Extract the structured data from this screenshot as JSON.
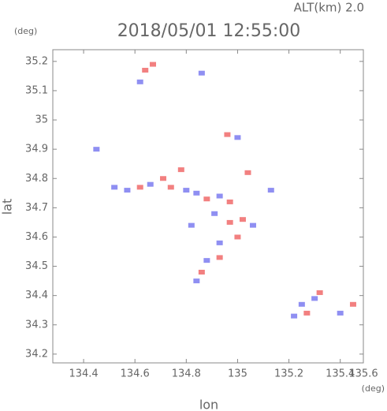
{
  "chart_data": {
    "type": "scatter",
    "title": "2018/05/01 12:55:00",
    "altitude_label": "ALT(km) 2.0",
    "y_unit": "(deg)",
    "x_unit": "(deg)",
    "x_label": "lon",
    "y_label": "lat",
    "xlim": [
      134.28,
      135.49
    ],
    "ylim": [
      34.17,
      35.24
    ],
    "xticks": [
      134.4,
      134.6,
      134.8,
      135.0,
      135.2,
      135.4,
      135.6
    ],
    "yticks": [
      34.2,
      34.3,
      34.4,
      34.5,
      34.6,
      34.7,
      34.8,
      34.9,
      35.0,
      35.1,
      35.2
    ],
    "x": [
      134.64,
      134.67,
      134.62,
      134.86,
      134.96,
      135.0,
      134.52,
      134.57,
      134.62,
      134.66,
      134.71,
      134.74,
      134.78,
      134.8,
      134.84,
      134.88,
      134.93,
      134.97,
      134.91,
      134.97,
      135.02,
      135.0,
      134.93,
      134.88,
      134.93,
      134.86,
      134.84,
      135.04,
      135.13,
      135.25,
      135.3,
      135.32,
      135.22,
      135.27,
      135.45,
      135.4,
      134.82,
      135.06,
      134.45
    ],
    "y": [
      35.17,
      35.19,
      35.13,
      35.16,
      34.95,
      34.94,
      34.77,
      34.76,
      34.77,
      34.78,
      34.8,
      34.77,
      34.83,
      34.76,
      34.75,
      34.73,
      34.74,
      34.72,
      34.68,
      34.65,
      34.66,
      34.6,
      34.58,
      34.52,
      34.53,
      34.48,
      34.45,
      34.82,
      34.76,
      34.37,
      34.39,
      34.41,
      34.33,
      34.34,
      34.37,
      34.34,
      34.64,
      34.64,
      34.9
    ],
    "colors": [
      "#f06a6a",
      "#f06a6a",
      "#7b7bf0",
      "#7b7bf0",
      "#f06a6a",
      "#7b7bf0",
      "#7b7bf0",
      "#7b7bf0",
      "#f06a6a",
      "#7b7bf0",
      "#f06a6a",
      "#f06a6a",
      "#f06a6a",
      "#7b7bf0",
      "#7b7bf0",
      "#f06a6a",
      "#7b7bf0",
      "#f06a6a",
      "#7b7bf0",
      "#f06a6a",
      "#f06a6a",
      "#f06a6a",
      "#7b7bf0",
      "#7b7bf0",
      "#f06a6a",
      "#f06a6a",
      "#7b7bf0",
      "#f06a6a",
      "#7b7bf0",
      "#7b7bf0",
      "#7b7bf0",
      "#f06a6a",
      "#7b7bf0",
      "#f06a6a",
      "#f06a6a",
      "#7b7bf0",
      "#7b7bf0",
      "#7b7bf0",
      "#7b7bf0"
    ]
  }
}
